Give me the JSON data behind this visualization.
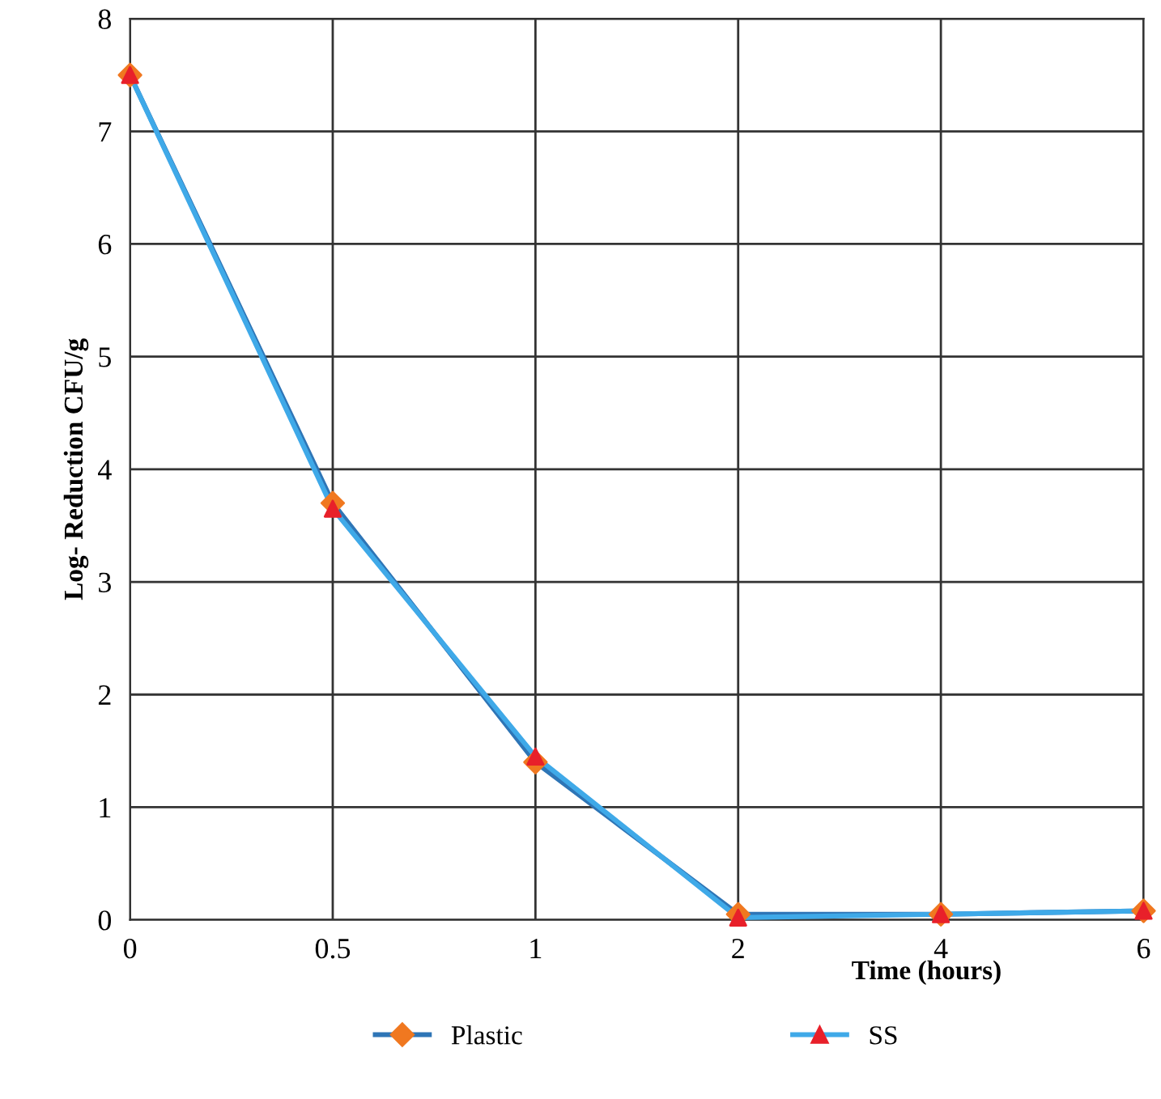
{
  "chart_data": {
    "type": "line",
    "xlabel": "Time (hours)",
    "ylabel": "Log- Reduction CFU/g",
    "categories": [
      "0",
      "0.5",
      "1",
      "2",
      "4",
      "6"
    ],
    "series": [
      {
        "name": "Plastic",
        "color": "#2e75b6",
        "marker": "diamond",
        "colors": [
          "#f07820",
          "#f07820",
          "#f07820",
          "#f07820",
          "#f07820",
          "#f07820"
        ],
        "values": [
          7.5,
          3.7,
          1.4,
          0.05,
          0.05,
          0.08
        ]
      },
      {
        "name": "SS",
        "color": "#3fa9e8",
        "marker": "triangle",
        "colors": [
          "#e8202a",
          "#e8202a",
          "#e8202a",
          "#e8202a",
          "#e8202a",
          "#e8202a"
        ],
        "values": [
          7.5,
          3.65,
          1.45,
          0.02,
          0.05,
          0.08
        ]
      }
    ],
    "ylim": [
      0,
      8
    ],
    "yticks": [
      0,
      1,
      2,
      3,
      4,
      5,
      6,
      7,
      8
    ],
    "grid": true,
    "legend": "bottom"
  }
}
